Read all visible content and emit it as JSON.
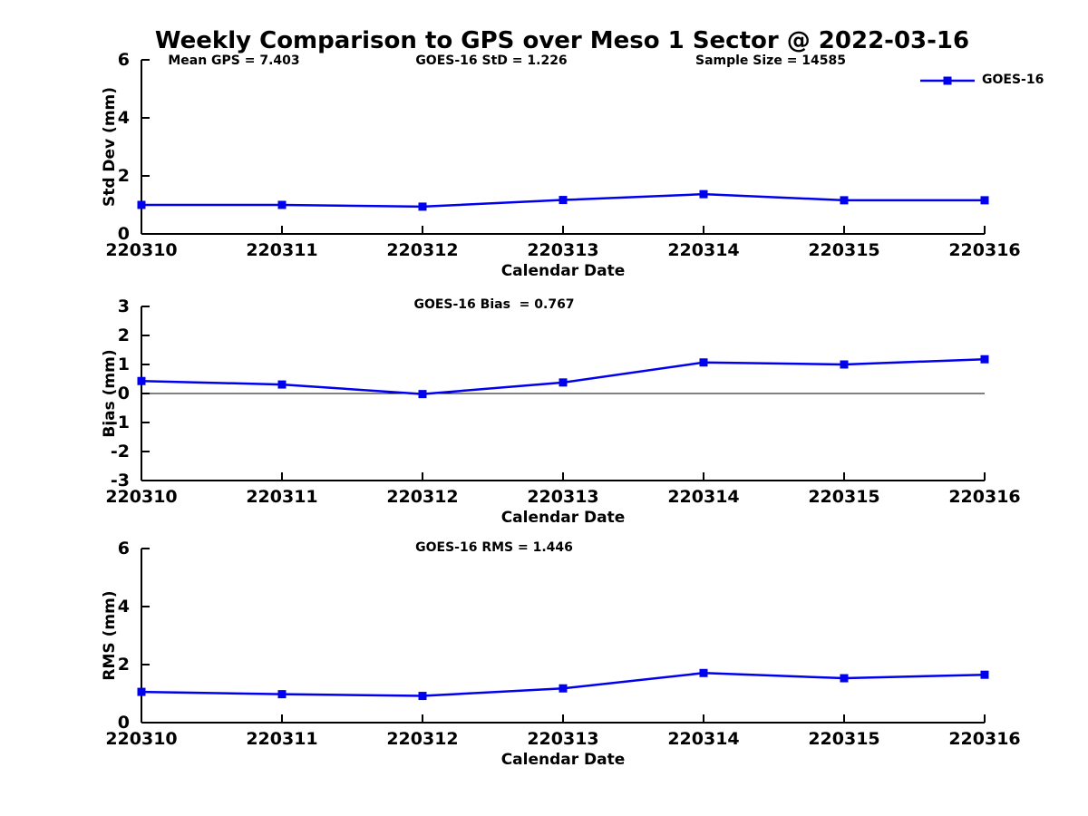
{
  "page_title": "Weekly Comparison to GPS over Meso 1 Sector @ 2022-03-16",
  "colors": {
    "series": "#0000EE",
    "axis": "#000000",
    "background": "#FFFFFF",
    "text": "#000000"
  },
  "chart_data": [
    {
      "type": "line",
      "title": "",
      "ylabel": "Std Dev (mm)",
      "xlabel": "Calendar Date",
      "ylim": [
        0,
        6
      ],
      "yticks": [
        0,
        2,
        4,
        6
      ],
      "grid": false,
      "categories": [
        "220310",
        "220311",
        "220312",
        "220313",
        "220314",
        "220315",
        "220316"
      ],
      "annotations": [
        "Mean GPS = 7.403",
        "GOES-16 StD = 1.226",
        "Sample Size = 14585"
      ],
      "legend": {
        "position": "top-right",
        "entries": [
          "GOES-16"
        ]
      },
      "series": [
        {
          "name": "GOES-16",
          "color": "#0000EE",
          "marker": "square",
          "values": [
            1.0,
            1.0,
            0.94,
            1.17,
            1.37,
            1.16,
            1.16
          ]
        }
      ]
    },
    {
      "type": "line",
      "title": "GOES-16 Bias  = 0.767",
      "ylabel": "Bias (mm)",
      "xlabel": "Calendar Date",
      "ylim": [
        -3,
        3
      ],
      "yticks": [
        3,
        2,
        1,
        0,
        -1,
        -2,
        -3
      ],
      "zero_line": true,
      "grid": false,
      "categories": [
        "220310",
        "220311",
        "220312",
        "220313",
        "220314",
        "220315",
        "220316"
      ],
      "series": [
        {
          "name": "GOES-16",
          "color": "#0000EE",
          "marker": "square",
          "values": [
            0.43,
            0.31,
            -0.02,
            0.38,
            1.07,
            1.0,
            1.18
          ]
        }
      ]
    },
    {
      "type": "line",
      "title": "GOES-16 RMS = 1.446",
      "ylabel": "RMS (mm)",
      "xlabel": "Calendar Date",
      "ylim": [
        0,
        6
      ],
      "yticks": [
        0,
        2,
        4,
        6
      ],
      "grid": false,
      "categories": [
        "220310",
        "220311",
        "220312",
        "220313",
        "220314",
        "220315",
        "220316"
      ],
      "series": [
        {
          "name": "GOES-16",
          "color": "#0000EE",
          "marker": "square",
          "values": [
            1.06,
            0.98,
            0.92,
            1.18,
            1.71,
            1.53,
            1.65
          ]
        }
      ]
    }
  ]
}
